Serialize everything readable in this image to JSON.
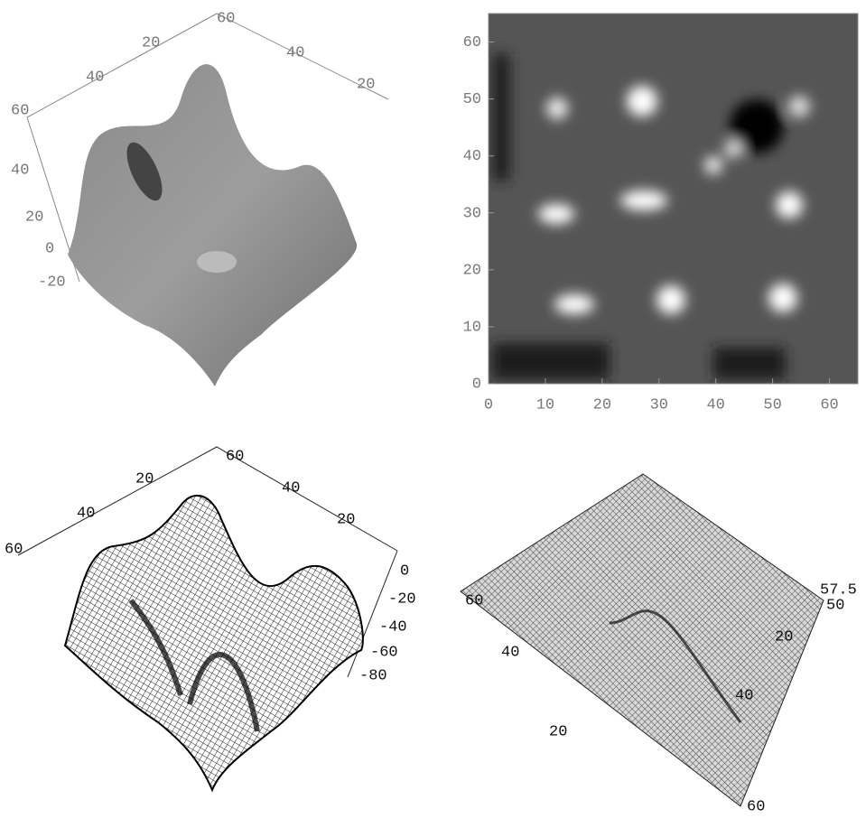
{
  "panels": [
    {
      "back_left_ticks": [
        20,
        40
      ],
      "back_right_ticks": [
        60,
        40,
        20
      ],
      "z_ticks": [
        60,
        40,
        20,
        0,
        -20
      ]
    },
    {
      "xlim": [
        0,
        65
      ],
      "ylim": [
        0,
        65
      ],
      "xticks": [
        0,
        10,
        20,
        30,
        40,
        50,
        60
      ],
      "yticks": [
        0,
        10,
        20,
        30,
        40,
        50,
        60
      ]
    },
    {
      "back_left_ticks": [
        20,
        40,
        60
      ],
      "back_right_ticks": [
        60,
        40,
        20
      ],
      "z_ticks": [
        0,
        -20,
        -40,
        -60,
        -80
      ]
    },
    {
      "left_ticks": [
        60,
        40,
        20
      ],
      "right_ticks": [
        20,
        40,
        60
      ],
      "z_ticks": [
        57.5,
        50
      ]
    }
  ]
}
